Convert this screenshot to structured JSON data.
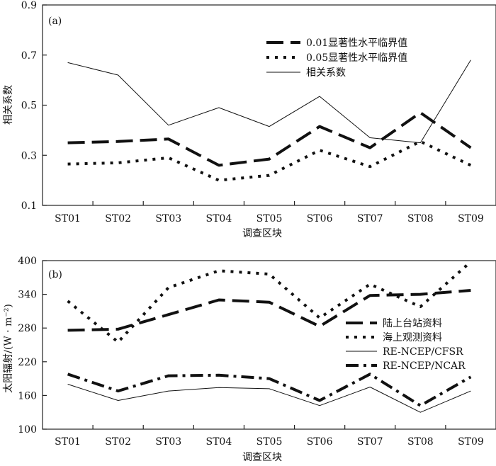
{
  "chart_data": [
    {
      "type": "line",
      "panel_label": "(a)",
      "xlabel": "调查区块",
      "ylabel": "相关系数",
      "categories": [
        "ST01",
        "ST02",
        "ST03",
        "ST04",
        "ST05",
        "ST06",
        "ST07",
        "ST08",
        "ST09"
      ],
      "ylim": [
        0.1,
        0.9
      ],
      "yticks": [
        "0.1",
        "0.3",
        "0.5",
        "0.7",
        "0.9"
      ],
      "legend_position": "top-right",
      "series": [
        {
          "name": "0.01显著性水平临界值",
          "style": "long-dash",
          "values": [
            0.35,
            0.355,
            0.365,
            0.26,
            0.285,
            0.415,
            0.33,
            0.47,
            0.33
          ]
        },
        {
          "name": "0.05显著性水平临界值",
          "style": "dotted",
          "values": [
            0.265,
            0.27,
            0.29,
            0.2,
            0.22,
            0.32,
            0.255,
            0.355,
            0.26
          ]
        },
        {
          "name": "相关系数",
          "style": "thin-solid",
          "values": [
            0.67,
            0.62,
            0.42,
            0.49,
            0.415,
            0.535,
            0.37,
            0.35,
            0.68
          ]
        }
      ]
    },
    {
      "type": "line",
      "panel_label": "(b)",
      "xlabel": "调查区块",
      "ylabel": "太阳辐射/(W · m⁻²)",
      "categories": [
        "ST01",
        "ST02",
        "ST03",
        "ST04",
        "ST05",
        "ST06",
        "ST07",
        "ST08",
        "ST09"
      ],
      "ylim": [
        100,
        400
      ],
      "yticks": [
        "100",
        "160",
        "220",
        "280",
        "340",
        "400"
      ],
      "legend_position": "right",
      "series": [
        {
          "name": "陆上台站资料",
          "style": "long-dash",
          "values": [
            276,
            278,
            304,
            330,
            326,
            283,
            338,
            340,
            347
          ]
        },
        {
          "name": "海上观测资料",
          "style": "dotted",
          "values": [
            328,
            255,
            352,
            382,
            376,
            298,
            358,
            318,
            398
          ]
        },
        {
          "name": "RE-NCEP/CFSR",
          "style": "thin-solid",
          "values": [
            180,
            151,
            168,
            174,
            172,
            142,
            175,
            130,
            168
          ]
        },
        {
          "name": "RE-NCEP/NCAR",
          "style": "dash-dot",
          "values": [
            198,
            168,
            195,
            196,
            190,
            151,
            198,
            142,
            193
          ]
        }
      ]
    }
  ]
}
